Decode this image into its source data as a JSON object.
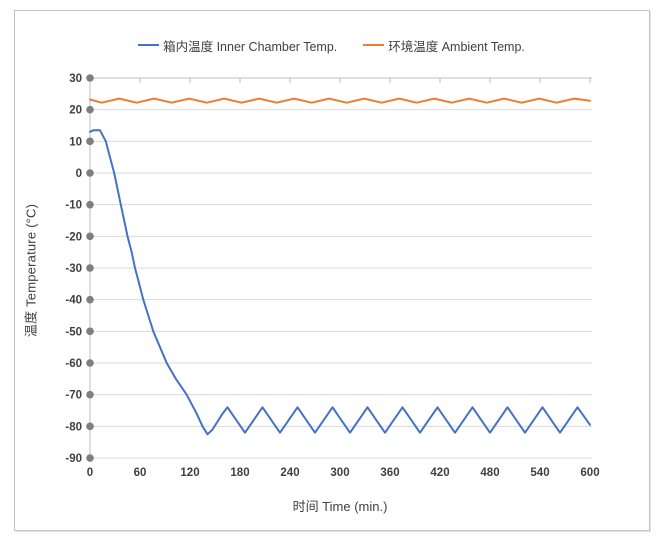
{
  "chart_data": {
    "type": "line",
    "title": "",
    "xlabel": "时间 Time (min.)",
    "ylabel": "温度 Temperature (°C)",
    "xlim": [
      0,
      600
    ],
    "ylim": [
      -90,
      30
    ],
    "x_ticks": [
      0,
      60,
      120,
      180,
      240,
      300,
      360,
      420,
      480,
      540,
      600
    ],
    "y_ticks": [
      30,
      20,
      10,
      0,
      -10,
      -20,
      -30,
      -40,
      -50,
      -60,
      -70,
      -80,
      -90
    ],
    "grid": "horizontal",
    "legend_position": "top",
    "series": [
      {
        "name": "箱内温度 Inner Chamber Temp.",
        "color": "#4472C4",
        "points": [
          [
            0,
            13
          ],
          [
            4,
            13.5
          ],
          [
            12,
            13.5
          ],
          [
            19,
            10
          ],
          [
            24,
            5
          ],
          [
            29,
            0
          ],
          [
            33,
            -5
          ],
          [
            37,
            -10
          ],
          [
            41,
            -15
          ],
          [
            45,
            -20
          ],
          [
            50,
            -25
          ],
          [
            54,
            -30
          ],
          [
            59,
            -35
          ],
          [
            64,
            -40
          ],
          [
            70,
            -45
          ],
          [
            76,
            -50
          ],
          [
            84,
            -55
          ],
          [
            92,
            -60
          ],
          [
            103,
            -65
          ],
          [
            116,
            -70
          ],
          [
            128,
            -76
          ],
          [
            135,
            -80
          ],
          [
            141,
            -82.5
          ],
          [
            147,
            -81
          ],
          [
            153,
            -78.5
          ],
          [
            159,
            -76
          ],
          [
            165,
            -74
          ],
          [
            186,
            -82
          ],
          [
            207,
            -74
          ],
          [
            228,
            -82
          ],
          [
            249,
            -74
          ],
          [
            270,
            -82
          ],
          [
            291,
            -74
          ],
          [
            312,
            -82
          ],
          [
            333,
            -74
          ],
          [
            354,
            -82
          ],
          [
            375,
            -74
          ],
          [
            396,
            -82
          ],
          [
            417,
            -74
          ],
          [
            438,
            -82
          ],
          [
            459,
            -74
          ],
          [
            480,
            -82
          ],
          [
            501,
            -74
          ],
          [
            522,
            -82
          ],
          [
            543,
            -74
          ],
          [
            564,
            -82
          ],
          [
            585,
            -74
          ],
          [
            600,
            -79.5
          ]
        ]
      },
      {
        "name": "环境温度 Ambient Temp.",
        "color": "#ED7D31",
        "points": [
          [
            0,
            23.2
          ],
          [
            14,
            22.2
          ],
          [
            35,
            23.5
          ],
          [
            56,
            22.2
          ],
          [
            77,
            23.5
          ],
          [
            98,
            22.2
          ],
          [
            119,
            23.5
          ],
          [
            140,
            22.2
          ],
          [
            161,
            23.5
          ],
          [
            182,
            22.2
          ],
          [
            203,
            23.5
          ],
          [
            224,
            22.2
          ],
          [
            245,
            23.5
          ],
          [
            266,
            22.2
          ],
          [
            287,
            23.5
          ],
          [
            308,
            22.2
          ],
          [
            329,
            23.5
          ],
          [
            350,
            22.2
          ],
          [
            371,
            23.5
          ],
          [
            392,
            22.2
          ],
          [
            413,
            23.5
          ],
          [
            434,
            22.2
          ],
          [
            455,
            23.5
          ],
          [
            476,
            22.2
          ],
          [
            497,
            23.5
          ],
          [
            518,
            22.2
          ],
          [
            539,
            23.5
          ],
          [
            560,
            22.2
          ],
          [
            581,
            23.5
          ],
          [
            600,
            22.8
          ]
        ]
      }
    ],
    "colors": {
      "gridline": "#D9D9D9",
      "axis_line": "#BFBFBF",
      "tick_marker": "#7F7F7F",
      "tick_text": "#404040",
      "border": "#C4C4C4"
    }
  }
}
